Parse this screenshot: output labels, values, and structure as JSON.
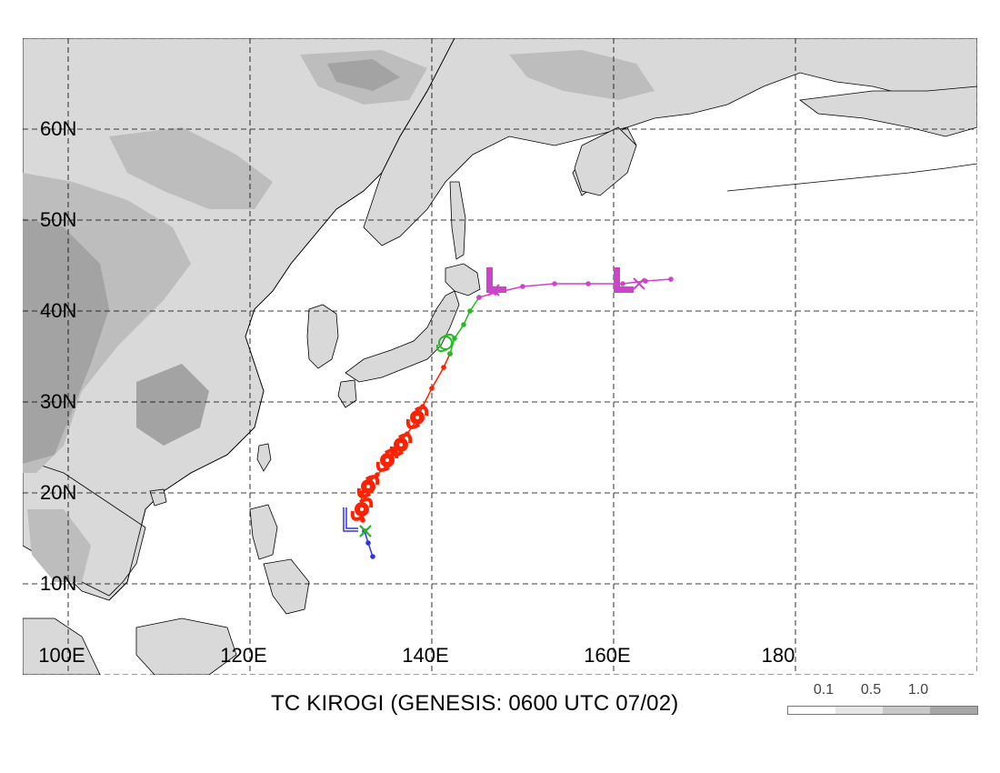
{
  "title": "TC KIROGI (GENESIS: 0600 UTC 07/02)",
  "lat_labels": [
    "60N",
    "50N",
    "40N",
    "30N",
    "20N",
    "10N"
  ],
  "lon_labels": [
    "100E",
    "120E",
    "140E",
    "160E",
    "180"
  ],
  "legend": {
    "labels": [
      "0.1",
      "0.5",
      "1.0"
    ],
    "colors": [
      "#ffffff",
      "#e6e6e6",
      "#c8c8c8",
      "#a6a6a6"
    ]
  },
  "colors": {
    "land_base": "#d9d9d9",
    "terrain_mid": "#bdbdbd",
    "terrain_high": "#a3a3a3",
    "coast": "#000000",
    "grid": "#000000",
    "track_early": "#3333dd",
    "track_red": "#ff2200",
    "track_green": "#22bb22",
    "track_magenta": "#cc44cc"
  },
  "storm_track": {
    "name": "KIROGI",
    "segments": [
      {
        "stage": "early",
        "color_key": "track_early",
        "points": [
          [
            133.5,
            13.0
          ],
          [
            133.0,
            14.5
          ],
          [
            132.6,
            15.8
          ]
        ]
      },
      {
        "stage": "red",
        "color_key": "track_red",
        "points": [
          [
            132.4,
            17.0
          ],
          [
            132.2,
            18.5
          ],
          [
            132.3,
            20.0
          ],
          [
            133.2,
            21.3
          ],
          [
            134.0,
            22.0
          ],
          [
            135.0,
            23.0
          ],
          [
            135.8,
            24.8
          ],
          [
            137.3,
            26.5
          ],
          [
            138.3,
            28.0
          ],
          [
            139.0,
            29.5
          ],
          [
            140.0,
            31.5
          ],
          [
            141.3,
            33.8
          ],
          [
            142.0,
            35.3
          ]
        ]
      },
      {
        "stage": "green",
        "color_key": "track_green",
        "points": [
          [
            142.0,
            35.3
          ],
          [
            142.5,
            37.0
          ],
          [
            143.5,
            38.5
          ],
          [
            144.2,
            40.0
          ],
          [
            145.2,
            41.5
          ]
        ]
      },
      {
        "stage": "magenta",
        "color_key": "track_magenta",
        "points": [
          [
            145.2,
            41.5
          ],
          [
            147.0,
            42.0
          ],
          [
            150.0,
            42.7
          ],
          [
            153.5,
            43.0
          ],
          [
            157.2,
            43.0
          ],
          [
            161.0,
            43.0
          ],
          [
            163.5,
            43.3
          ],
          [
            166.3,
            43.5
          ]
        ]
      }
    ],
    "symbols": [
      {
        "kind": "L",
        "lon": 130.3,
        "lat": 15.8,
        "color_key": "track_early",
        "size": "small"
      },
      {
        "kind": "x",
        "lon": 132.7,
        "lat": 15.8,
        "color_key": "track_early"
      },
      {
        "kind": "x",
        "lon": 132.7,
        "lat": 15.8,
        "color_key": "track_green"
      },
      {
        "kind": "cyclone",
        "lon": 132.3,
        "lat": 18.2,
        "color_key": "track_red"
      },
      {
        "kind": "cyclone",
        "lon": 133.0,
        "lat": 20.7,
        "color_key": "track_red"
      },
      {
        "kind": "cyclone",
        "lon": 135.1,
        "lat": 23.6,
        "color_key": "track_red"
      },
      {
        "kind": "cyclone",
        "lon": 136.6,
        "lat": 25.3,
        "color_key": "track_red"
      },
      {
        "kind": "cyclone",
        "lon": 138.4,
        "lat": 28.3,
        "color_key": "track_red"
      },
      {
        "kind": "storm-open",
        "lon": 141.5,
        "lat": 36.5,
        "color_key": "track_green"
      },
      {
        "kind": "L",
        "lon": 146.0,
        "lat": 42.0,
        "color_key": "track_magenta",
        "size": "large"
      },
      {
        "kind": "x",
        "lon": 146.8,
        "lat": 42.3,
        "color_key": "track_magenta"
      },
      {
        "kind": "L",
        "lon": 160.0,
        "lat": 42.0,
        "color_key": "track_magenta",
        "size": "large"
      },
      {
        "kind": "x",
        "lon": 162.8,
        "lat": 43.0,
        "color_key": "track_magenta"
      }
    ]
  }
}
